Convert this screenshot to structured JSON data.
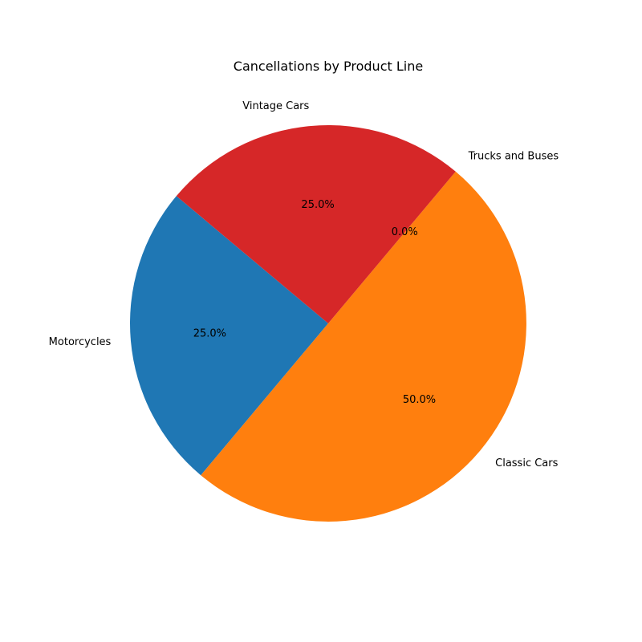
{
  "chart_data": {
    "type": "pie",
    "title": "Cancellations by Product Line",
    "categories": [
      "Motorcycles",
      "Classic Cars",
      "Trucks and Buses",
      "Vintage Cars"
    ],
    "values": [
      25.0,
      50.0,
      0.0,
      25.0
    ],
    "percent_labels": [
      "25.0%",
      "50.0%",
      "0.0%",
      "25.0%"
    ],
    "colors": [
      "#1f77b4",
      "#ff7f0e",
      "#2ca02c",
      "#d62728"
    ],
    "start_angle_deg": 140,
    "direction": "counterclockwise"
  }
}
